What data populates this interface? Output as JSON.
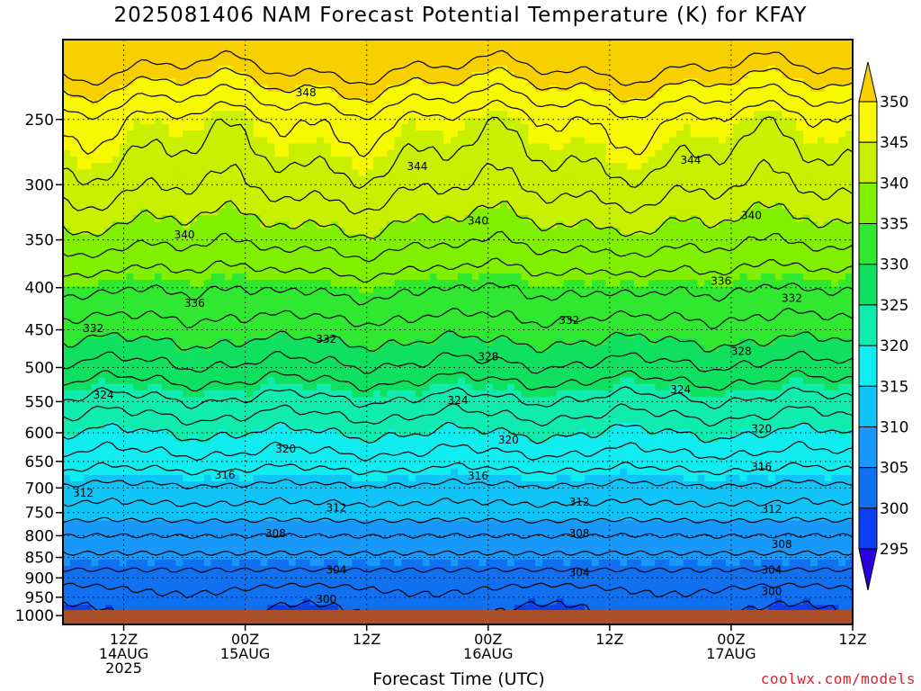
{
  "title": "2025081406 NAM Forecast Potential Temperature (K) for KFAY",
  "xlabel": "Forecast Time (UTC)",
  "credit": "coolwx.com/models",
  "chart_data": {
    "type": "heatmap",
    "title": "2025081406 NAM Forecast Potential Temperature (K) for KFAY",
    "xlabel": "Forecast Time (UTC)",
    "ylabel": "",
    "y_axis": {
      "scale": "log-pressure",
      "inverted": true,
      "ticks": [
        250,
        300,
        350,
        400,
        450,
        500,
        550,
        600,
        650,
        700,
        750,
        800,
        850,
        900,
        950,
        1000
      ],
      "range": [
        200,
        1025
      ]
    },
    "x_axis": {
      "range_hours": [
        6,
        84
      ],
      "ticks": [
        {
          "hour": 12,
          "lines": [
            "12Z",
            "14AUG",
            "2025"
          ]
        },
        {
          "hour": 24,
          "lines": [
            "00Z",
            "15AUG"
          ]
        },
        {
          "hour": 36,
          "lines": [
            "12Z"
          ]
        },
        {
          "hour": 48,
          "lines": [
            "00Z",
            "16AUG"
          ]
        },
        {
          "hour": 60,
          "lines": [
            "12Z"
          ]
        },
        {
          "hour": 72,
          "lines": [
            "00Z",
            "17AUG"
          ]
        },
        {
          "hour": 84,
          "lines": [
            "12Z"
          ]
        }
      ]
    },
    "colorbar": {
      "levels": [
        295,
        300,
        305,
        310,
        315,
        320,
        325,
        330,
        335,
        340,
        345,
        350
      ],
      "colors": [
        "#2a00e0",
        "#0a40f0",
        "#1070f0",
        "#1898f8",
        "#10c4f8",
        "#10ecf0",
        "#10ecb0",
        "#10e060",
        "#30e830",
        "#80f000",
        "#c8f000",
        "#f8f800",
        "#f8d000"
      ]
    },
    "contour_labels": [
      {
        "value": "348",
        "hour": 30,
        "pressure": 232
      },
      {
        "value": "344",
        "hour": 41,
        "pressure": 285
      },
      {
        "value": "344",
        "hour": 68,
        "pressure": 280
      },
      {
        "value": "340",
        "hour": 18,
        "pressure": 345
      },
      {
        "value": "340",
        "hour": 47,
        "pressure": 332
      },
      {
        "value": "340",
        "hour": 74,
        "pressure": 327
      },
      {
        "value": "336",
        "hour": 19,
        "pressure": 418
      },
      {
        "value": "336",
        "hour": 71,
        "pressure": 393
      },
      {
        "value": "332",
        "hour": 9,
        "pressure": 448
      },
      {
        "value": "332",
        "hour": 32,
        "pressure": 462
      },
      {
        "value": "332",
        "hour": 56,
        "pressure": 438
      },
      {
        "value": "332",
        "hour": 78,
        "pressure": 412
      },
      {
        "value": "328",
        "hour": 48,
        "pressure": 485
      },
      {
        "value": "328",
        "hour": 73,
        "pressure": 478
      },
      {
        "value": "324",
        "hour": 10,
        "pressure": 540
      },
      {
        "value": "324",
        "hour": 45,
        "pressure": 548
      },
      {
        "value": "324",
        "hour": 67,
        "pressure": 532
      },
      {
        "value": "320",
        "hour": 28,
        "pressure": 628
      },
      {
        "value": "320",
        "hour": 50,
        "pressure": 612
      },
      {
        "value": "320",
        "hour": 75,
        "pressure": 593
      },
      {
        "value": "316",
        "hour": 22,
        "pressure": 675
      },
      {
        "value": "316",
        "hour": 47,
        "pressure": 677
      },
      {
        "value": "316",
        "hour": 75,
        "pressure": 660
      },
      {
        "value": "312",
        "hour": 8,
        "pressure": 710
      },
      {
        "value": "312",
        "hour": 33,
        "pressure": 740
      },
      {
        "value": "312",
        "hour": 57,
        "pressure": 728
      },
      {
        "value": "312",
        "hour": 76,
        "pressure": 743
      },
      {
        "value": "308",
        "hour": 27,
        "pressure": 795
      },
      {
        "value": "308",
        "hour": 57,
        "pressure": 795
      },
      {
        "value": "308",
        "hour": 77,
        "pressure": 820
      },
      {
        "value": "304",
        "hour": 33,
        "pressure": 880
      },
      {
        "value": "304",
        "hour": 57,
        "pressure": 887
      },
      {
        "value": "304",
        "hour": 76,
        "pressure": 880
      },
      {
        "value": "300",
        "hour": 32,
        "pressure": 955
      },
      {
        "value": "300",
        "hour": 76,
        "pressure": 935
      }
    ]
  }
}
